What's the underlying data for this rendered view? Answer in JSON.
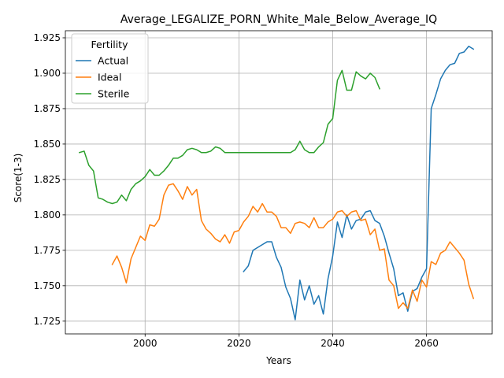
{
  "chart_data": {
    "type": "line",
    "title": "Average_LEGALIZE_PORN_White_Male_Below_Average_IQ",
    "xlabel": "Years",
    "ylabel": "Score(1-3)",
    "xlim": [
      1983,
      2074
    ],
    "ylim": [
      1.716,
      1.93
    ],
    "xticks": [
      2000,
      2020,
      2040,
      2060
    ],
    "yticks": [
      1.725,
      1.75,
      1.775,
      1.8,
      1.825,
      1.85,
      1.875,
      1.9,
      1.925
    ],
    "ytick_labels": [
      "1.725",
      "1.750",
      "1.775",
      "1.800",
      "1.825",
      "1.850",
      "1.875",
      "1.900",
      "1.925"
    ],
    "grid": true,
    "legend": {
      "title": "Fertility",
      "position": "top-left"
    },
    "series": [
      {
        "name": "Actual",
        "color": "#1f77b4",
        "x": [
          2021,
          2022,
          2023,
          2024,
          2025,
          2026,
          2027,
          2028,
          2029,
          2030,
          2031,
          2032,
          2033,
          2034,
          2035,
          2036,
          2037,
          2038,
          2039,
          2040,
          2041,
          2042,
          2043,
          2044,
          2045,
          2046,
          2047,
          2048,
          2049,
          2050,
          2051,
          2052,
          2053,
          2054,
          2055,
          2056,
          2057,
          2058,
          2059,
          2060,
          2061,
          2062,
          2063,
          2064,
          2065,
          2066,
          2067,
          2068,
          2069,
          2070
        ],
        "values": [
          1.76,
          1.764,
          1.775,
          1.777,
          1.779,
          1.781,
          1.781,
          1.77,
          1.763,
          1.749,
          1.741,
          1.726,
          1.754,
          1.74,
          1.75,
          1.737,
          1.743,
          1.73,
          1.755,
          1.771,
          1.795,
          1.784,
          1.8,
          1.79,
          1.796,
          1.797,
          1.802,
          1.803,
          1.796,
          1.794,
          1.785,
          1.773,
          1.762,
          1.743,
          1.745,
          1.732,
          1.746,
          1.748,
          1.756,
          1.762,
          1.875,
          1.885,
          1.896,
          1.902,
          1.906,
          1.907,
          1.914,
          1.915,
          1.919,
          1.917
        ]
      },
      {
        "name": "Ideal",
        "color": "#ff7f0e",
        "x": [
          1993,
          1994,
          1995,
          1996,
          1997,
          1998,
          1999,
          2000,
          2001,
          2002,
          2003,
          2004,
          2005,
          2006,
          2007,
          2008,
          2009,
          2010,
          2011,
          2012,
          2013,
          2014,
          2015,
          2016,
          2017,
          2018,
          2019,
          2020,
          2021,
          2022,
          2023,
          2024,
          2025,
          2026,
          2027,
          2028,
          2029,
          2030,
          2031,
          2032,
          2033,
          2034,
          2035,
          2036,
          2037,
          2038,
          2039,
          2040,
          2041,
          2042,
          2043,
          2044,
          2045,
          2046,
          2047,
          2048,
          2049,
          2050,
          2051,
          2052,
          2053,
          2054,
          2055,
          2056,
          2057,
          2058,
          2059,
          2060,
          2061,
          2062,
          2063,
          2064,
          2065,
          2066,
          2067,
          2068,
          2069,
          2070
        ],
        "values": [
          1.765,
          1.771,
          1.763,
          1.752,
          1.769,
          1.777,
          1.785,
          1.782,
          1.793,
          1.792,
          1.797,
          1.814,
          1.821,
          1.822,
          1.817,
          1.811,
          1.82,
          1.814,
          1.818,
          1.796,
          1.79,
          1.787,
          1.783,
          1.781,
          1.786,
          1.78,
          1.788,
          1.789,
          1.795,
          1.799,
          1.806,
          1.802,
          1.808,
          1.802,
          1.802,
          1.799,
          1.791,
          1.791,
          1.787,
          1.794,
          1.795,
          1.794,
          1.791,
          1.798,
          1.791,
          1.791,
          1.795,
          1.797,
          1.802,
          1.803,
          1.799,
          1.802,
          1.803,
          1.796,
          1.797,
          1.786,
          1.79,
          1.775,
          1.776,
          1.754,
          1.75,
          1.734,
          1.738,
          1.734,
          1.747,
          1.739,
          1.754,
          1.749,
          1.767,
          1.765,
          1.773,
          1.775,
          1.781,
          1.777,
          1.773,
          1.768,
          1.751,
          1.741
        ]
      },
      {
        "name": "Sterile",
        "color": "#2ca02c",
        "x": [
          1986,
          1987,
          1988,
          1989,
          1990,
          1991,
          1992,
          1993,
          1994,
          1995,
          1996,
          1997,
          1998,
          1999,
          2000,
          2001,
          2002,
          2003,
          2004,
          2005,
          2006,
          2007,
          2008,
          2009,
          2010,
          2011,
          2012,
          2013,
          2014,
          2015,
          2016,
          2017,
          2018,
          2019,
          2020,
          2021,
          2022,
          2023,
          2024,
          2025,
          2026,
          2027,
          2028,
          2029,
          2030,
          2031,
          2032,
          2033,
          2034,
          2035,
          2036,
          2037,
          2038,
          2039,
          2040,
          2041,
          2042,
          2043,
          2044,
          2045,
          2046,
          2047,
          2048,
          2049,
          2050
        ],
        "values": [
          1.844,
          1.845,
          1.835,
          1.831,
          1.812,
          1.811,
          1.809,
          1.808,
          1.809,
          1.814,
          1.81,
          1.818,
          1.822,
          1.824,
          1.827,
          1.832,
          1.828,
          1.828,
          1.831,
          1.835,
          1.84,
          1.84,
          1.842,
          1.846,
          1.847,
          1.846,
          1.844,
          1.844,
          1.845,
          1.848,
          1.847,
          1.844,
          1.844,
          1.844,
          1.844,
          1.844,
          1.844,
          1.844,
          1.844,
          1.844,
          1.844,
          1.844,
          1.844,
          1.844,
          1.844,
          1.844,
          1.846,
          1.852,
          1.846,
          1.844,
          1.844,
          1.848,
          1.851,
          1.864,
          1.868,
          1.895,
          1.902,
          1.888,
          1.888,
          1.901,
          1.898,
          1.896,
          1.9,
          1.897,
          1.889
        ]
      }
    ]
  }
}
